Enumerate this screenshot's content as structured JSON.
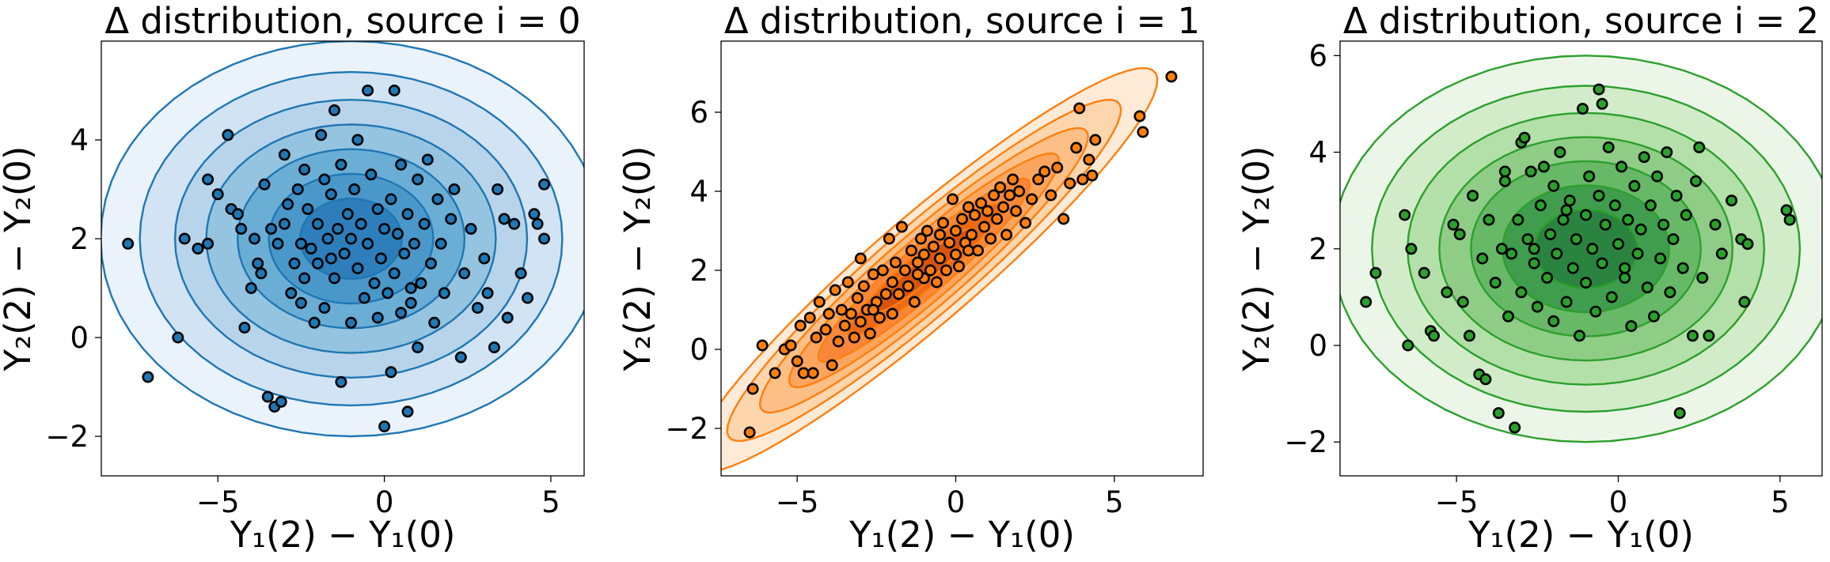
{
  "chart_data": [
    {
      "type": "scatter",
      "title": "Δ distribution, source i = 0",
      "xlabel": "Y₁(2) − Y₁(0)",
      "ylabel": "Y₂(2) − Y₂(0)",
      "xlim": [
        -8.5,
        6.0
      ],
      "ylim": [
        -2.8,
        6.0
      ],
      "xticks": [
        -5,
        0,
        5
      ],
      "yticks": [
        -2,
        0,
        2,
        4
      ],
      "xtick_labels": [
        "−5",
        "0",
        "5"
      ],
      "ytick_labels": [
        "−2",
        "0",
        "2",
        "4"
      ],
      "color": "#1f77b4",
      "fill_colors": [
        "#eaf2fb",
        "#d2e3f3",
        "#b7d4ea",
        "#94c4df",
        "#6aaed6",
        "#4a98c9",
        "#2e7ebc"
      ],
      "density": {
        "mean": [
          -1.0,
          2.0
        ],
        "sd": [
          2.35,
          1.25
        ],
        "rho": 0.0
      },
      "points": [
        [
          -7.7,
          1.9
        ],
        [
          -7.1,
          -0.8
        ],
        [
          -6.2,
          0.0
        ],
        [
          -6.0,
          2.0
        ],
        [
          -5.6,
          1.8
        ],
        [
          -5.3,
          1.9
        ],
        [
          -5.3,
          3.2
        ],
        [
          -5.0,
          2.9
        ],
        [
          -4.7,
          4.1
        ],
        [
          -4.6,
          2.6
        ],
        [
          -4.4,
          2.5
        ],
        [
          -4.3,
          2.2
        ],
        [
          -4.2,
          0.2
        ],
        [
          -4.0,
          1.0
        ],
        [
          -3.9,
          2.0
        ],
        [
          -3.8,
          1.5
        ],
        [
          -3.7,
          1.3
        ],
        [
          -3.6,
          3.1
        ],
        [
          -3.5,
          -1.2
        ],
        [
          -3.4,
          2.2
        ],
        [
          -3.3,
          -1.4
        ],
        [
          -3.2,
          1.9
        ],
        [
          -3.1,
          -1.3
        ],
        [
          -3.0,
          3.7
        ],
        [
          -3.0,
          2.3
        ],
        [
          -2.9,
          2.7
        ],
        [
          -2.8,
          0.9
        ],
        [
          -2.7,
          1.5
        ],
        [
          -2.6,
          3.0
        ],
        [
          -2.5,
          0.7
        ],
        [
          -2.4,
          3.4
        ],
        [
          -2.4,
          1.2
        ],
        [
          -2.3,
          2.6
        ],
        [
          -2.2,
          1.8
        ],
        [
          -2.1,
          0.3
        ],
        [
          -2.0,
          2.3
        ],
        [
          -2.0,
          1.5
        ],
        [
          -1.9,
          4.1
        ],
        [
          -1.8,
          3.2
        ],
        [
          -1.8,
          0.6
        ],
        [
          -1.7,
          2.0
        ],
        [
          -1.6,
          2.9
        ],
        [
          -1.5,
          4.6
        ],
        [
          -1.5,
          1.2
        ],
        [
          -1.4,
          2.2
        ],
        [
          -1.3,
          3.5
        ],
        [
          -1.3,
          -0.9
        ],
        [
          -1.2,
          1.7
        ],
        [
          -1.1,
          2.5
        ],
        [
          -1.0,
          0.3
        ],
        [
          -1.0,
          2.0
        ],
        [
          -0.9,
          3.0
        ],
        [
          -0.8,
          1.4
        ],
        [
          -0.8,
          4.0
        ],
        [
          -0.7,
          2.3
        ],
        [
          -0.6,
          0.8
        ],
        [
          -0.5,
          5.0
        ],
        [
          -0.5,
          1.9
        ],
        [
          -0.4,
          3.3
        ],
        [
          -0.3,
          1.1
        ],
        [
          -0.2,
          2.6
        ],
        [
          -0.2,
          0.4
        ],
        [
          -0.1,
          1.6
        ],
        [
          0.0,
          2.2
        ],
        [
          0.0,
          -1.8
        ],
        [
          0.1,
          0.9
        ],
        [
          0.2,
          2.8
        ],
        [
          0.2,
          -0.7
        ],
        [
          0.3,
          5.0
        ],
        [
          0.3,
          1.3
        ],
        [
          0.4,
          2.1
        ],
        [
          0.5,
          3.5
        ],
        [
          0.5,
          0.5
        ],
        [
          0.6,
          1.7
        ],
        [
          0.7,
          -1.5
        ],
        [
          0.7,
          2.5
        ],
        [
          0.8,
          0.7
        ],
        [
          0.9,
          1.9
        ],
        [
          1.0,
          3.2
        ],
        [
          1.0,
          -0.2
        ],
        [
          1.1,
          1.1
        ],
        [
          1.2,
          2.3
        ],
        [
          1.3,
          3.6
        ],
        [
          1.4,
          1.5
        ],
        [
          1.5,
          0.3
        ],
        [
          1.6,
          2.8
        ],
        [
          1.7,
          1.9
        ],
        [
          1.8,
          0.9
        ],
        [
          2.0,
          2.4
        ],
        [
          2.1,
          3.0
        ],
        [
          2.3,
          -0.4
        ],
        [
          2.4,
          1.3
        ],
        [
          2.6,
          2.2
        ],
        [
          2.8,
          0.6
        ],
        [
          3.0,
          1.6
        ],
        [
          3.1,
          0.9
        ],
        [
          3.3,
          -0.2
        ],
        [
          3.4,
          3.0
        ],
        [
          3.6,
          2.4
        ],
        [
          3.7,
          0.4
        ],
        [
          3.9,
          2.3
        ],
        [
          4.1,
          1.3
        ],
        [
          4.3,
          0.8
        ],
        [
          4.5,
          2.5
        ],
        [
          4.6,
          2.3
        ],
        [
          4.8,
          3.1
        ],
        [
          4.8,
          2.0
        ],
        [
          -2.5,
          1.9
        ],
        [
          -1.6,
          1.6
        ],
        [
          0.8,
          1.0
        ]
      ]
    },
    {
      "type": "scatter",
      "title": "Δ distribution, source i = 1",
      "xlabel": "Y₁(2) − Y₁(0)",
      "ylabel": "Y₂(2) − Y₂(0)",
      "xlim": [
        -7.4,
        7.8
      ],
      "ylim": [
        -3.2,
        7.8
      ],
      "xticks": [
        -5,
        0,
        5
      ],
      "yticks": [
        -2,
        0,
        2,
        4,
        6
      ],
      "xtick_labels": [
        "−5",
        "0",
        "5"
      ],
      "ytick_labels": [
        "−2",
        "0",
        "2",
        "4",
        "6"
      ],
      "color": "#ff7f0e",
      "fill_colors": [
        "#fdebd8",
        "#fdd6ad",
        "#fdbf86",
        "#fda55e",
        "#f9873a",
        "#ec6a17",
        "#d9540a"
      ],
      "density": {
        "mean": [
          -1.0,
          2.0
        ],
        "sd": [
          2.3,
          1.6
        ],
        "rho": 0.94
      },
      "points": [
        [
          -6.5,
          -2.1
        ],
        [
          -6.4,
          -1.0
        ],
        [
          -6.1,
          0.1
        ],
        [
          -5.7,
          -0.6
        ],
        [
          -5.4,
          0.0
        ],
        [
          -5.2,
          0.1
        ],
        [
          -5.0,
          -0.3
        ],
        [
          -4.9,
          0.6
        ],
        [
          -4.8,
          -0.6
        ],
        [
          -4.6,
          0.8
        ],
        [
          -4.5,
          -0.6
        ],
        [
          -4.4,
          0.3
        ],
        [
          -4.3,
          1.2
        ],
        [
          -4.1,
          0.5
        ],
        [
          -4.0,
          0.9
        ],
        [
          -3.9,
          -0.4
        ],
        [
          -3.8,
          1.5
        ],
        [
          -3.7,
          0.2
        ],
        [
          -3.6,
          1.0
        ],
        [
          -3.5,
          0.6
        ],
        [
          -3.4,
          1.7
        ],
        [
          -3.3,
          0.9
        ],
        [
          -3.2,
          0.3
        ],
        [
          -3.1,
          1.3
        ],
        [
          -3.0,
          2.3
        ],
        [
          -3.0,
          0.7
        ],
        [
          -2.9,
          1.6
        ],
        [
          -2.8,
          1.0
        ],
        [
          -2.7,
          0.4
        ],
        [
          -2.6,
          1.9
        ],
        [
          -2.5,
          1.2
        ],
        [
          -2.4,
          0.8
        ],
        [
          -2.3,
          2.0
        ],
        [
          -2.2,
          1.4
        ],
        [
          -2.1,
          2.8
        ],
        [
          -2.0,
          1.7
        ],
        [
          -2.0,
          0.9
        ],
        [
          -1.9,
          2.2
        ],
        [
          -1.8,
          1.4
        ],
        [
          -1.7,
          3.1
        ],
        [
          -1.6,
          2.0
        ],
        [
          -1.5,
          1.6
        ],
        [
          -1.4,
          2.5
        ],
        [
          -1.3,
          1.2
        ],
        [
          -1.2,
          2.2
        ],
        [
          -1.1,
          2.8
        ],
        [
          -1.0,
          1.8
        ],
        [
          -1.0,
          2.4
        ],
        [
          -0.9,
          3.0
        ],
        [
          -0.8,
          2.0
        ],
        [
          -0.7,
          2.6
        ],
        [
          -0.6,
          1.7
        ],
        [
          -0.5,
          2.9
        ],
        [
          -0.5,
          2.3
        ],
        [
          -0.4,
          3.2
        ],
        [
          -0.3,
          2.0
        ],
        [
          -0.2,
          2.7
        ],
        [
          -0.1,
          3.8
        ],
        [
          0.0,
          2.4
        ],
        [
          0.0,
          3.0
        ],
        [
          0.1,
          2.1
        ],
        [
          0.2,
          3.3
        ],
        [
          0.3,
          2.7
        ],
        [
          0.4,
          3.6
        ],
        [
          0.5,
          2.9
        ],
        [
          0.6,
          3.4
        ],
        [
          0.7,
          2.5
        ],
        [
          0.8,
          3.7
        ],
        [
          0.9,
          3.1
        ],
        [
          1.0,
          3.5
        ],
        [
          1.1,
          2.8
        ],
        [
          1.2,
          3.9
        ],
        [
          1.3,
          3.3
        ],
        [
          1.4,
          4.1
        ],
        [
          1.5,
          3.6
        ],
        [
          1.6,
          2.9
        ],
        [
          1.7,
          3.9
        ],
        [
          1.8,
          4.3
        ],
        [
          1.9,
          3.5
        ],
        [
          2.0,
          4.0
        ],
        [
          2.2,
          3.2
        ],
        [
          2.4,
          3.8
        ],
        [
          2.6,
          4.3
        ],
        [
          2.8,
          4.5
        ],
        [
          3.0,
          3.9
        ],
        [
          3.2,
          4.6
        ],
        [
          3.4,
          3.3
        ],
        [
          3.6,
          4.2
        ],
        [
          3.8,
          5.1
        ],
        [
          4.0,
          4.3
        ],
        [
          4.2,
          4.8
        ],
        [
          4.3,
          4.4
        ],
        [
          4.4,
          5.3
        ],
        [
          3.9,
          6.1
        ],
        [
          5.8,
          5.9
        ],
        [
          5.9,
          5.5
        ],
        [
          6.8,
          6.9
        ],
        [
          -1.2,
          1.9
        ],
        [
          0.4,
          2.5
        ],
        [
          -2.6,
          1.0
        ]
      ]
    },
    {
      "type": "scatter",
      "title": "Δ distribution, source i = 2",
      "xlabel": "Y₁(2) − Y₁(0)",
      "ylabel": "Y₂(2) − Y₂(0)",
      "xlim": [
        -8.6,
        6.3
      ],
      "ylim": [
        -2.7,
        6.3
      ],
      "xticks": [
        -5,
        0,
        5
      ],
      "yticks": [
        -2,
        0,
        2,
        4,
        6
      ],
      "xtick_labels": [
        "−5",
        "0",
        "5"
      ],
      "ytick_labels": [
        "−2",
        "0",
        "2",
        "4",
        "6"
      ],
      "color": "#2ca02c",
      "fill_colors": [
        "#ebf6e8",
        "#d2ecca",
        "#b3dfa8",
        "#8fcd87",
        "#67b867",
        "#3f9d4d",
        "#2a8440"
      ],
      "density": {
        "mean": [
          -1.0,
          2.0
        ],
        "sd": [
          2.45,
          1.25
        ],
        "rho": 0.0
      },
      "points": [
        [
          -7.8,
          0.9
        ],
        [
          -7.5,
          1.5
        ],
        [
          -6.6,
          2.7
        ],
        [
          -6.5,
          0.0
        ],
        [
          -6.4,
          2.0
        ],
        [
          -6.0,
          1.5
        ],
        [
          -5.8,
          0.3
        ],
        [
          -5.7,
          0.2
        ],
        [
          -5.3,
          1.1
        ],
        [
          -5.1,
          2.5
        ],
        [
          -4.9,
          2.3
        ],
        [
          -4.8,
          0.9
        ],
        [
          -4.6,
          0.2
        ],
        [
          -4.5,
          3.1
        ],
        [
          -4.3,
          -0.6
        ],
        [
          -4.2,
          1.8
        ],
        [
          -4.1,
          -0.7
        ],
        [
          -4.0,
          2.6
        ],
        [
          -3.8,
          1.3
        ],
        [
          -3.7,
          -1.4
        ],
        [
          -3.6,
          2.0
        ],
        [
          -3.5,
          3.4
        ],
        [
          -3.4,
          0.6
        ],
        [
          -3.3,
          1.9
        ],
        [
          -3.2,
          -1.7
        ],
        [
          -3.1,
          2.6
        ],
        [
          -3.0,
          4.2
        ],
        [
          -3.0,
          1.1
        ],
        [
          -2.9,
          4.3
        ],
        [
          -2.8,
          2.2
        ],
        [
          -2.7,
          3.6
        ],
        [
          -2.6,
          1.7
        ],
        [
          -2.5,
          0.8
        ],
        [
          -2.4,
          2.9
        ],
        [
          -2.3,
          3.7
        ],
        [
          -2.2,
          1.4
        ],
        [
          -2.1,
          2.3
        ],
        [
          -2.0,
          0.5
        ],
        [
          -2.0,
          3.3
        ],
        [
          -1.9,
          1.9
        ],
        [
          -1.8,
          4.0
        ],
        [
          -1.7,
          2.6
        ],
        [
          -1.6,
          0.9
        ],
        [
          -1.5,
          3.0
        ],
        [
          -1.4,
          1.6
        ],
        [
          -1.3,
          2.2
        ],
        [
          -1.2,
          0.2
        ],
        [
          -1.1,
          4.9
        ],
        [
          -1.0,
          2.7
        ],
        [
          -1.0,
          1.3
        ],
        [
          -0.9,
          3.5
        ],
        [
          -0.8,
          2.0
        ],
        [
          -0.7,
          0.7
        ],
        [
          -0.6,
          3.1
        ],
        [
          -0.5,
          5.0
        ],
        [
          -0.5,
          1.7
        ],
        [
          -0.4,
          2.5
        ],
        [
          -0.3,
          4.1
        ],
        [
          -0.2,
          1.0
        ],
        [
          -0.1,
          2.9
        ],
        [
          0.0,
          2.1
        ],
        [
          0.1,
          3.7
        ],
        [
          0.2,
          1.4
        ],
        [
          0.3,
          2.6
        ],
        [
          0.4,
          0.4
        ],
        [
          0.5,
          3.3
        ],
        [
          0.6,
          1.9
        ],
        [
          0.7,
          2.4
        ],
        [
          0.8,
          3.9
        ],
        [
          0.9,
          1.2
        ],
        [
          1.0,
          2.9
        ],
        [
          1.1,
          0.6
        ],
        [
          1.2,
          3.5
        ],
        [
          1.3,
          1.8
        ],
        [
          1.4,
          2.5
        ],
        [
          1.5,
          4.0
        ],
        [
          1.6,
          1.1
        ],
        [
          1.7,
          2.2
        ],
        [
          1.8,
          3.1
        ],
        [
          1.9,
          -1.4
        ],
        [
          2.0,
          1.6
        ],
        [
          2.1,
          2.7
        ],
        [
          2.3,
          0.2
        ],
        [
          2.4,
          3.4
        ],
        [
          2.5,
          4.1
        ],
        [
          2.6,
          1.4
        ],
        [
          2.8,
          0.2
        ],
        [
          3.0,
          2.5
        ],
        [
          3.2,
          1.9
        ],
        [
          3.5,
          3.0
        ],
        [
          3.8,
          2.2
        ],
        [
          3.9,
          0.9
        ],
        [
          4.0,
          2.1
        ],
        [
          5.2,
          2.8
        ],
        [
          5.3,
          2.6
        ],
        [
          -0.6,
          5.3
        ],
        [
          -3.5,
          3.6
        ],
        [
          -1.6,
          2.8
        ],
        [
          0.2,
          1.6
        ],
        [
          -2.6,
          2.0
        ]
      ]
    }
  ]
}
